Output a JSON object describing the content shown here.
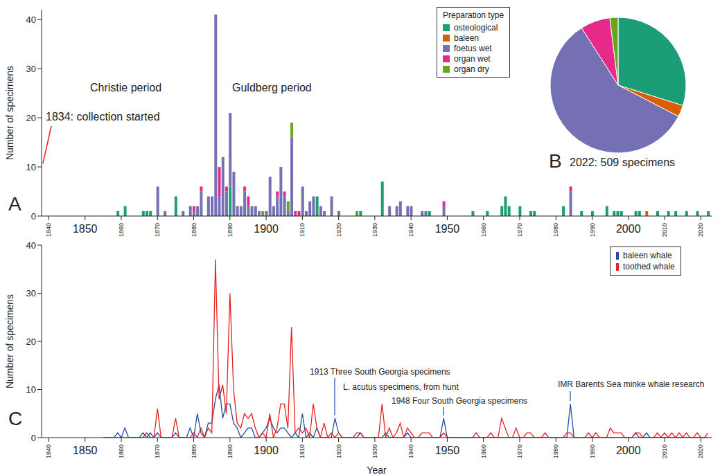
{
  "chart_data": [
    {
      "label": "A",
      "type": "bar",
      "stacked": true,
      "grid": false,
      "legend": "top-right",
      "legend_title": "Preparation type",
      "y_label": "Number of specimens",
      "annotations": [
        "Christie period",
        "Guldberg period",
        "1834: collection started"
      ],
      "xlim": [
        1838,
        2023
      ],
      "xticks": [
        1840,
        1850,
        1860,
        1870,
        1880,
        1890,
        1900,
        1910,
        1920,
        1930,
        1940,
        1950,
        1960,
        1970,
        1980,
        1990,
        2000,
        2010,
        2020
      ],
      "ylim": [
        0,
        42
      ],
      "yticks": [
        0,
        10,
        20,
        30,
        40
      ],
      "x": [
        1859,
        1861,
        1866,
        1867,
        1868,
        1870,
        1872,
        1875,
        1877,
        1879,
        1880,
        1881,
        1882,
        1884,
        1885,
        1886,
        1887,
        1888,
        1889,
        1890,
        1891,
        1892,
        1893,
        1894,
        1895,
        1896,
        1897,
        1898,
        1899,
        1900,
        1901,
        1902,
        1903,
        1904,
        1905,
        1906,
        1907,
        1908,
        1909,
        1910,
        1911,
        1912,
        1913,
        1914,
        1915,
        1916,
        1918,
        1920,
        1925,
        1926,
        1932,
        1934,
        1936,
        1937,
        1939,
        1940,
        1943,
        1944,
        1945,
        1949,
        1957,
        1961,
        1965,
        1966,
        1967,
        1970,
        1973,
        1974,
        1982,
        1984,
        1987,
        1990,
        1994,
        1996,
        1997,
        1998,
        2002,
        2003,
        2005,
        2008,
        2011,
        2013,
        2016,
        2019,
        2022
      ],
      "series": [
        {
          "name": "osteological",
          "color": "#1b9e77",
          "values": [
            1,
            2,
            1,
            1,
            1,
            0,
            0,
            4,
            0,
            0,
            0,
            0,
            0,
            0,
            0,
            0,
            0,
            0,
            0,
            6,
            0,
            0,
            0,
            0,
            0,
            0,
            0,
            0,
            0,
            0,
            0,
            0,
            0,
            0,
            0,
            0,
            0,
            0,
            0,
            0,
            0,
            0,
            0,
            4,
            0,
            0,
            0,
            0,
            0,
            1,
            7,
            0,
            0,
            0,
            0,
            0,
            0,
            0,
            1,
            0,
            1,
            1,
            2,
            4,
            2,
            2,
            1,
            1,
            2,
            0,
            1,
            1,
            2,
            1,
            1,
            1,
            1,
            1,
            0,
            1,
            1,
            1,
            1,
            1,
            1
          ]
        },
        {
          "name": "baleen",
          "color": "#d95f02",
          "values": [
            0,
            0,
            0,
            0,
            0,
            0,
            0,
            0,
            0,
            0,
            0,
            0,
            0,
            0,
            0,
            0,
            0,
            0,
            0,
            0,
            0,
            0,
            0,
            0,
            0,
            0,
            0,
            0,
            0,
            0,
            0,
            0,
            0,
            0,
            0,
            0,
            0,
            0,
            0,
            0,
            0,
            0,
            0,
            0,
            0,
            0,
            0,
            0,
            0,
            0,
            0,
            0,
            0,
            0,
            0,
            0,
            0,
            0,
            0,
            0,
            0,
            0,
            0,
            0,
            0,
            0,
            0,
            0,
            0,
            0,
            0,
            0,
            0,
            0,
            0,
            0,
            0,
            0,
            1,
            0,
            0,
            0,
            0,
            0,
            0
          ]
        },
        {
          "name": "foetus wet",
          "color": "#7570b3",
          "values": [
            0,
            0,
            0,
            0,
            0,
            6,
            1,
            0,
            1,
            2,
            1,
            2,
            5,
            4,
            4,
            41,
            4,
            12,
            5,
            15,
            9,
            2,
            2,
            5,
            2,
            2,
            2,
            1,
            0,
            1,
            8,
            2,
            4,
            10,
            4,
            1,
            16,
            0,
            0,
            6,
            1,
            3,
            4,
            0,
            2,
            1,
            4,
            1,
            0,
            0,
            0,
            2,
            2,
            3,
            2,
            2,
            1,
            1,
            0,
            2,
            0,
            0,
            0,
            0,
            0,
            0,
            0,
            0,
            0,
            5,
            0,
            0,
            0,
            0,
            0,
            0,
            0,
            0,
            0,
            0,
            0,
            0,
            0,
            0,
            0
          ]
        },
        {
          "name": "organ wet",
          "color": "#e7298a",
          "values": [
            0,
            0,
            0,
            0,
            0,
            0,
            0,
            0,
            0,
            0,
            1,
            0,
            1,
            0,
            0,
            0,
            6,
            0,
            1,
            0,
            0,
            0,
            0,
            1,
            2,
            0,
            0,
            0,
            0,
            0,
            0,
            0,
            1,
            0,
            1,
            0,
            0,
            1,
            1,
            0,
            0,
            0,
            0,
            0,
            0,
            0,
            0,
            0,
            0,
            0,
            0,
            0,
            0,
            0,
            0,
            0,
            0,
            0,
            0,
            1,
            0,
            0,
            0,
            0,
            0,
            0,
            0,
            0,
            0,
            1,
            0,
            0,
            0,
            0,
            0,
            0,
            0,
            0,
            0,
            0,
            0,
            0,
            0,
            0,
            0
          ]
        },
        {
          "name": "organ dry",
          "color": "#66a61e",
          "values": [
            0,
            0,
            0,
            0,
            0,
            0,
            0,
            0,
            0,
            0,
            0,
            0,
            0,
            0,
            0,
            0,
            0,
            0,
            0,
            0,
            0,
            0,
            0,
            0,
            0,
            0,
            0,
            0,
            1,
            0,
            0,
            0,
            0,
            0,
            0,
            2,
            3,
            0,
            0,
            0,
            0,
            0,
            0,
            0,
            0,
            0,
            0,
            0,
            1,
            0,
            0,
            0,
            0,
            0,
            0,
            0,
            0,
            0,
            0,
            0,
            0,
            0,
            0,
            0,
            0,
            0,
            0,
            0,
            0,
            0,
            0,
            0,
            0,
            0,
            0,
            0,
            0,
            0,
            0,
            0,
            0,
            0,
            0,
            0,
            0
          ]
        }
      ]
    },
    {
      "label": "B",
      "type": "pie",
      "title": "2022: 509 specimens",
      "categories": [
        "osteological",
        "baleen",
        "foetus wet",
        "organ wet",
        "organ dry"
      ],
      "values": [
        152,
        14,
        297,
        36,
        10
      ],
      "colors": [
        "#1b9e77",
        "#d95f02",
        "#7570b3",
        "#e7298a",
        "#66a61e"
      ]
    },
    {
      "label": "C",
      "type": "line",
      "grid": false,
      "legend": "top-right",
      "y_label": "Number of specimens",
      "x_label": "Year",
      "annotations": [
        "1913 Three South Georgia specimens",
        "L. acutus specimens, from hunt",
        "1948 Four South Georgia specimens",
        "IMR Barents Sea minke whale research"
      ],
      "xlim": [
        1838,
        2023
      ],
      "xticks": [
        1840,
        1850,
        1860,
        1870,
        1880,
        1890,
        1900,
        1910,
        1920,
        1930,
        1940,
        1950,
        1960,
        1970,
        1980,
        1990,
        2000,
        2010,
        2020
      ],
      "ylim": [
        0,
        40
      ],
      "yticks": [
        0,
        10,
        20,
        30,
        40
      ],
      "x": [
        1855,
        1856,
        1857,
        1858,
        1859,
        1860,
        1861,
        1862,
        1863,
        1864,
        1865,
        1866,
        1867,
        1868,
        1869,
        1870,
        1871,
        1872,
        1873,
        1874,
        1875,
        1876,
        1877,
        1878,
        1879,
        1880,
        1881,
        1882,
        1883,
        1884,
        1885,
        1886,
        1887,
        1888,
        1889,
        1890,
        1891,
        1892,
        1893,
        1894,
        1895,
        1896,
        1897,
        1898,
        1899,
        1900,
        1901,
        1902,
        1903,
        1904,
        1905,
        1906,
        1907,
        1908,
        1909,
        1910,
        1911,
        1912,
        1913,
        1914,
        1915,
        1916,
        1917,
        1918,
        1919,
        1920,
        1921,
        1922,
        1923,
        1924,
        1925,
        1926,
        1927,
        1928,
        1929,
        1930,
        1931,
        1932,
        1933,
        1934,
        1935,
        1936,
        1937,
        1938,
        1939,
        1940,
        1941,
        1942,
        1943,
        1944,
        1945,
        1946,
        1947,
        1948,
        1949,
        1950,
        1951,
        1952,
        1953,
        1954,
        1955,
        1956,
        1957,
        1958,
        1959,
        1960,
        1961,
        1962,
        1963,
        1964,
        1965,
        1966,
        1967,
        1968,
        1969,
        1970,
        1971,
        1972,
        1973,
        1974,
        1975,
        1976,
        1977,
        1978,
        1979,
        1980,
        1981,
        1982,
        1983,
        1984,
        1985,
        1986,
        1987,
        1988,
        1989,
        1990,
        1991,
        1992,
        1993,
        1994,
        1995,
        1996,
        1997,
        1998,
        1999,
        2000,
        2001,
        2002,
        2003,
        2004,
        2005,
        2006,
        2007,
        2008,
        2009,
        2010,
        2011,
        2012,
        2013,
        2014,
        2015,
        2016,
        2017,
        2018,
        2019,
        2020,
        2021,
        2022
      ],
      "series": [
        {
          "name": "baleen whale",
          "color": "#1f4fa3",
          "values": [
            0,
            0,
            0,
            0,
            1,
            0,
            2,
            0,
            0,
            0,
            0,
            1,
            0,
            1,
            0,
            1,
            0,
            0,
            0,
            0,
            1,
            0,
            0,
            0,
            2,
            0,
            5,
            1,
            0,
            3,
            3,
            8,
            11,
            4,
            7,
            7,
            3,
            2,
            0,
            1,
            2,
            2,
            0,
            0,
            1,
            2,
            4,
            2,
            1,
            2,
            2,
            1,
            0,
            1,
            0,
            5,
            0,
            1,
            0,
            2,
            0,
            0,
            0,
            0,
            4,
            1,
            0,
            0,
            0,
            0,
            0,
            1,
            0,
            0,
            0,
            0,
            0,
            0,
            1,
            0,
            0,
            0,
            0,
            0,
            1,
            0,
            0,
            0,
            0,
            0,
            0,
            0,
            0,
            0,
            4,
            0,
            0,
            0,
            0,
            0,
            0,
            0,
            0,
            0,
            0,
            0,
            0,
            0,
            0,
            0,
            0,
            0,
            0,
            0,
            0,
            0,
            0,
            0,
            0,
            0,
            0,
            0,
            0,
            0,
            0,
            0,
            0,
            0,
            0,
            7,
            0,
            0,
            0,
            0,
            0,
            0,
            0,
            0,
            0,
            0,
            0,
            0,
            0,
            0,
            0,
            0,
            0,
            1,
            0,
            0,
            1,
            0,
            0,
            0,
            0,
            0,
            0,
            0,
            0,
            0,
            0,
            0,
            0,
            0,
            0,
            0,
            0,
            0
          ]
        },
        {
          "name": "toothed whale",
          "color": "#e8201f",
          "values": [
            0,
            0,
            0,
            0,
            0,
            0,
            0,
            0,
            0,
            0,
            0,
            0,
            1,
            0,
            0,
            6,
            0,
            0,
            0,
            0,
            4,
            0,
            0,
            0,
            0,
            1,
            0,
            2,
            0,
            2,
            1,
            37,
            8,
            11,
            5,
            30,
            10,
            3,
            2,
            5,
            4,
            5,
            2,
            0,
            1,
            0,
            5,
            0,
            2,
            7,
            7,
            2,
            23,
            1,
            2,
            1,
            2,
            0,
            7,
            2,
            0,
            3,
            0,
            1,
            0,
            1,
            0,
            0,
            0,
            0,
            1,
            1,
            0,
            0,
            0,
            0,
            0,
            7,
            0,
            2,
            0,
            1,
            3,
            0,
            2,
            1,
            0,
            0,
            1,
            1,
            1,
            0,
            0,
            0,
            1,
            0,
            0,
            0,
            0,
            0,
            0,
            0,
            0,
            1,
            0,
            0,
            0,
            1,
            0,
            0,
            4,
            2,
            0,
            0,
            2,
            0,
            0,
            1,
            1,
            0,
            0,
            0,
            1,
            0,
            0,
            0,
            0,
            0,
            1,
            1,
            0,
            0,
            0,
            0,
            1,
            0,
            1,
            0,
            0,
            0,
            2,
            1,
            1,
            1,
            0,
            0,
            0,
            1,
            1,
            0,
            0,
            0,
            0,
            1,
            0,
            1,
            0,
            1,
            0,
            1,
            0,
            1,
            0,
            0,
            1,
            0,
            0,
            1
          ]
        }
      ]
    }
  ]
}
